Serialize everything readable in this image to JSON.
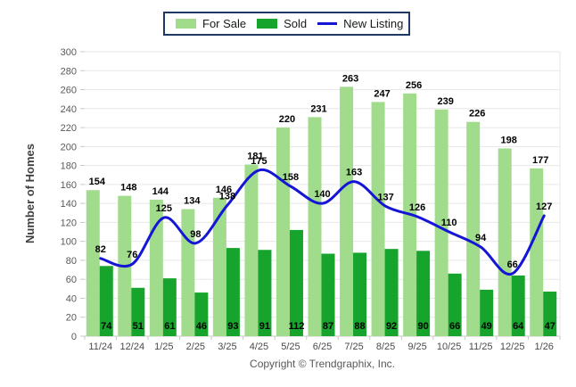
{
  "y_axis_title": "Number of Homes",
  "footer": {
    "copyright": "Copyright © Trendgraphix, Inc."
  },
  "legend": {
    "position": "top-center",
    "items": [
      {
        "label": "For Sale",
        "type": "swatch",
        "color": "#a1dc8c"
      },
      {
        "label": "Sold",
        "type": "swatch",
        "color": "#17a42c"
      },
      {
        "label": "New Listing",
        "type": "line",
        "color": "#1515d6"
      }
    ]
  },
  "chart_data": {
    "type": "bar",
    "subtype": "grouped bars with overlaid smooth line",
    "title": "",
    "xlabel": "",
    "ylabel": "Number of Homes",
    "ylim": [
      0,
      300
    ],
    "ytick_step": 20,
    "grid": "horizontal",
    "legend_position": "top-center",
    "categories": [
      "11/24",
      "12/24",
      "1/25",
      "2/25",
      "3/25",
      "4/25",
      "5/25",
      "6/25",
      "7/25",
      "8/25",
      "9/25",
      "10/25",
      "11/25",
      "12/25",
      "1/26"
    ],
    "series": [
      {
        "name": "For Sale",
        "type": "bar",
        "color": "#a1dc8c",
        "values": [
          154,
          148,
          144,
          134,
          146,
          181,
          220,
          231,
          263,
          247,
          256,
          239,
          226,
          198,
          177
        ]
      },
      {
        "name": "Sold",
        "type": "bar",
        "color": "#17a42c",
        "values": [
          74,
          51,
          61,
          46,
          93,
          91,
          112,
          87,
          88,
          92,
          90,
          66,
          49,
          64,
          47
        ]
      },
      {
        "name": "New Listing",
        "type": "line",
        "color": "#1515d6",
        "values": [
          82,
          76,
          125,
          98,
          138,
          175,
          158,
          140,
          163,
          137,
          126,
          110,
          94,
          66,
          127
        ]
      }
    ],
    "colors": {
      "gridline": "#e7e7e7",
      "axis": "#c9c9c9",
      "data_label": "#000000"
    }
  }
}
